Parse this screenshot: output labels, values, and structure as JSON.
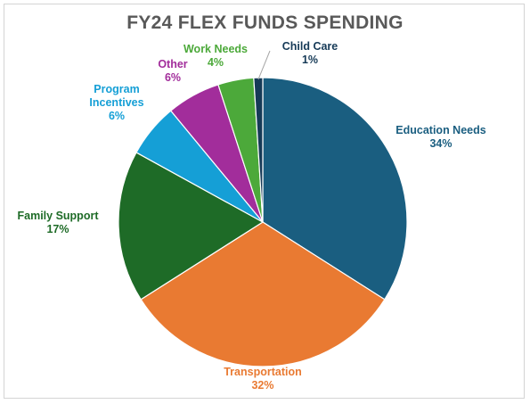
{
  "chart_data": {
    "type": "pie",
    "title": "FY24 FLEX FUNDS SPENDING",
    "slices": [
      {
        "label": "Education Needs",
        "value": 34,
        "value_label": "34%",
        "color": "#1a5e80"
      },
      {
        "label": "Transportation",
        "value": 32,
        "value_label": "32%",
        "color": "#e97a32"
      },
      {
        "label": "Family Support",
        "value": 17,
        "value_label": "17%",
        "color": "#1e6b27"
      },
      {
        "label_lines": [
          "Program",
          "Incentives"
        ],
        "label": "Program Incentives",
        "value": 6,
        "value_label": "6%",
        "color": "#159fd6"
      },
      {
        "label": "Other",
        "value": 6,
        "value_label": "6%",
        "color": "#a22d9b"
      },
      {
        "label": "Work Needs",
        "value": 4,
        "value_label": "4%",
        "color": "#4ca93a"
      },
      {
        "label": "Child Care",
        "value": 1,
        "value_label": "1%",
        "color": "#163a57"
      }
    ],
    "label_colors": {
      "Education Needs": "#1a5e80",
      "Transportation": "#e97a32",
      "Family Support": "#1e6b27",
      "Program Incentives": "#159fd6",
      "Other": "#a22d9b",
      "Work Needs": "#4ca93a",
      "Child Care": "#163a57"
    },
    "legend": "none"
  }
}
